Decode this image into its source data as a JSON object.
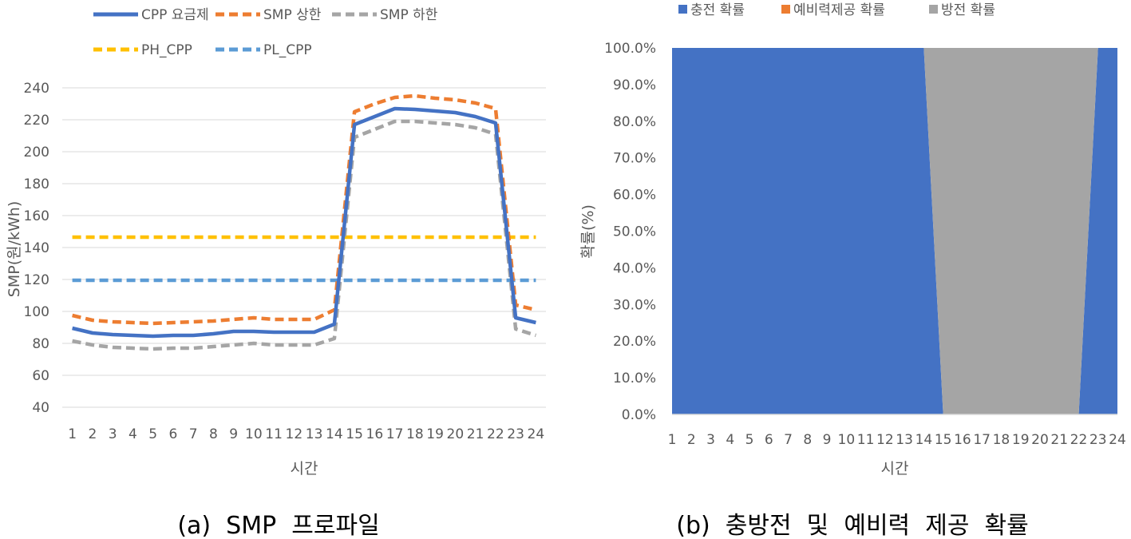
{
  "chart_data": [
    {
      "type": "line",
      "caption": "(a)  SMP  프로파일",
      "xlabel": "시간",
      "ylabel": "SMP(원/kWh)",
      "ylim": [
        40,
        240
      ],
      "yticks": [
        40,
        60,
        80,
        100,
        120,
        140,
        160,
        180,
        200,
        220,
        240
      ],
      "categories": [
        "1",
        "2",
        "3",
        "4",
        "5",
        "6",
        "7",
        "8",
        "9",
        "10",
        "11",
        "12",
        "13",
        "14",
        "15",
        "16",
        "17",
        "18",
        "19",
        "20",
        "21",
        "22",
        "23",
        "24"
      ],
      "grid": true,
      "legend_position": "top",
      "series": [
        {
          "name": "CPP 요금제",
          "color": "#4472C4",
          "style": "solid",
          "values": [
            89.5,
            86.5,
            85.5,
            85,
            84.5,
            85,
            85,
            86,
            87.5,
            87.5,
            87,
            87,
            87,
            92,
            217,
            222,
            227,
            226.5,
            225.5,
            224.5,
            222,
            218,
            96,
            93
          ]
        },
        {
          "name": "SMP 상한",
          "color": "#ED7D31",
          "style": "dashed",
          "values": [
            97.5,
            94.5,
            93.5,
            93,
            92.5,
            93,
            93.5,
            94,
            95,
            96,
            95,
            95,
            95,
            101,
            225,
            230,
            234,
            235,
            233.5,
            232.5,
            230.5,
            227,
            104,
            101
          ]
        },
        {
          "name": "SMP 하한",
          "color": "#A5A5A5",
          "style": "dashed",
          "values": [
            81.5,
            79,
            77.5,
            77,
            76.5,
            77,
            77,
            78,
            79,
            80,
            79,
            79,
            79,
            83,
            209,
            214,
            219,
            219,
            218,
            217,
            215,
            211,
            89,
            85
          ]
        },
        {
          "name": "PH_CPP",
          "color": "#FFC000",
          "style": "dashed",
          "values": [
            146.5,
            146.5,
            146.5,
            146.5,
            146.5,
            146.5,
            146.5,
            146.5,
            146.5,
            146.5,
            146.5,
            146.5,
            146.5,
            146.5,
            146.5,
            146.5,
            146.5,
            146.5,
            146.5,
            146.5,
            146.5,
            146.5,
            146.5,
            146.5
          ]
        },
        {
          "name": "PL_CPP",
          "color": "#5B9BD5",
          "style": "dashed",
          "values": [
            119.5,
            119.5,
            119.5,
            119.5,
            119.5,
            119.5,
            119.5,
            119.5,
            119.5,
            119.5,
            119.5,
            119.5,
            119.5,
            119.5,
            119.5,
            119.5,
            119.5,
            119.5,
            119.5,
            119.5,
            119.5,
            119.5,
            119.5,
            119.5
          ]
        }
      ]
    },
    {
      "type": "area",
      "stacked": true,
      "caption": "(b)  충방전  및  예비력  제공  확률",
      "xlabel": "시간",
      "ylabel": "확률(%)",
      "ylim": [
        0,
        100
      ],
      "yticks": [
        "0.0%",
        "10.0%",
        "20.0%",
        "30.0%",
        "40.0%",
        "50.0%",
        "60.0%",
        "70.0%",
        "80.0%",
        "90.0%",
        "100.0%"
      ],
      "categories": [
        "1",
        "2",
        "3",
        "4",
        "5",
        "6",
        "7",
        "8",
        "9",
        "10",
        "11",
        "12",
        "13",
        "14",
        "15",
        "16",
        "17",
        "18",
        "19",
        "20",
        "21",
        "22",
        "23",
        "24"
      ],
      "grid": false,
      "legend_position": "top",
      "series": [
        {
          "name": "충전 확률",
          "color": "#4472C4",
          "values": [
            100,
            100,
            100,
            100,
            100,
            100,
            100,
            100,
            100,
            100,
            100,
            100,
            100,
            100,
            0,
            0,
            0,
            0,
            0,
            0,
            0,
            0,
            100,
            100
          ]
        },
        {
          "name": "예비력제공 확률",
          "color": "#ED7D31",
          "values": [
            0,
            0,
            0,
            0,
            0,
            0,
            0,
            0,
            0,
            0,
            0,
            0,
            0,
            0,
            0,
            0,
            0,
            0,
            0,
            0,
            0,
            0,
            0,
            0
          ]
        },
        {
          "name": "방전 확률",
          "color": "#A5A5A5",
          "values": [
            0,
            0,
            0,
            0,
            0,
            0,
            0,
            0,
            0,
            0,
            0,
            0,
            0,
            0,
            100,
            100,
            100,
            100,
            100,
            100,
            100,
            100,
            0,
            0
          ]
        }
      ]
    }
  ]
}
